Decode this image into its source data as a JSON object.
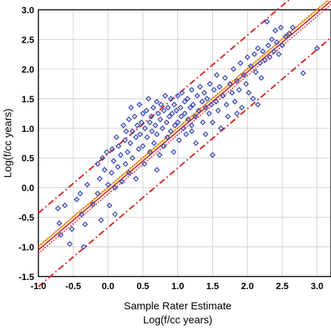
{
  "chart_data": {
    "type": "scatter",
    "title": "",
    "xlabel": "Sample Rater Estimate",
    "xlabel_sub": "Log(f/cc years)",
    "ylabel": "Log(f/cc years)",
    "xlim": [
      -1.0,
      3.2
    ],
    "ylim": [
      -1.5,
      3.0
    ],
    "xticks": [
      "-1.0",
      "-0.5",
      "0.0",
      "0.5",
      "1.0",
      "1.5",
      "2.0",
      "2.5",
      "3.0"
    ],
    "yticks": [
      "3.0",
      "2.5",
      "2.0",
      "1.5",
      "1.0",
      "0.5",
      "0.0",
      "-0.5",
      "-1.0",
      "-1.5"
    ],
    "grid": true,
    "colors": {
      "points": "#3a4bb5",
      "fit": "#d42a2a",
      "identity": "#f0a000",
      "interval": "#d42a2a"
    },
    "fit_line": {
      "intercept": -0.05,
      "slope": 1.0
    },
    "identity_line": {
      "intercept": 0.0,
      "slope": 1.0
    },
    "confidence_band": {
      "offset": 0.06
    },
    "prediction_band": {
      "offset": 0.62
    },
    "points": [
      [
        -0.72,
        -0.35
      ],
      [
        -0.7,
        -0.6
      ],
      [
        -0.68,
        -0.8
      ],
      [
        -0.62,
        -0.3
      ],
      [
        -0.55,
        -0.95
      ],
      [
        -0.52,
        -0.7
      ],
      [
        -0.45,
        -0.2
      ],
      [
        -0.4,
        -0.1
      ],
      [
        -0.38,
        -0.45
      ],
      [
        -0.35,
        -1.0
      ],
      [
        -0.33,
        -0.62
      ],
      [
        -0.3,
        0.05
      ],
      [
        -0.22,
        -0.28
      ],
      [
        -0.15,
        -0.1
      ],
      [
        -0.12,
        0.15
      ],
      [
        -0.1,
        -0.55
      ],
      [
        -0.08,
        0.5
      ],
      [
        -0.05,
        0.3
      ],
      [
        -0.02,
        0.6
      ],
      [
        0.0,
        0.05
      ],
      [
        0.02,
        -0.3
      ],
      [
        0.05,
        0.25
      ],
      [
        0.06,
        0.65
      ],
      [
        0.08,
        0.45
      ],
      [
        0.1,
        0.0
      ],
      [
        0.12,
        0.85
      ],
      [
        0.14,
        0.35
      ],
      [
        0.15,
        0.7
      ],
      [
        0.18,
        0.55
      ],
      [
        0.2,
        0.1
      ],
      [
        0.22,
        1.05
      ],
      [
        0.24,
        0.8
      ],
      [
        0.25,
        0.4
      ],
      [
        0.26,
        0.95
      ],
      [
        0.28,
        0.6
      ],
      [
        0.3,
        1.15
      ],
      [
        0.3,
        0.25
      ],
      [
        0.32,
        0.75
      ],
      [
        0.33,
        1.35
      ],
      [
        0.35,
        0.95
      ],
      [
        0.35,
        0.5
      ],
      [
        0.38,
        1.2
      ],
      [
        0.4,
        0.85
      ],
      [
        0.4,
        0.15
      ],
      [
        0.42,
        1.05
      ],
      [
        0.44,
        0.65
      ],
      [
        0.45,
        1.4
      ],
      [
        0.46,
        0.9
      ],
      [
        0.48,
        1.1
      ],
      [
        0.5,
        0.7
      ],
      [
        0.5,
        1.25
      ],
      [
        0.52,
        0.4
      ],
      [
        0.53,
        1.0
      ],
      [
        0.55,
        1.3
      ],
      [
        0.56,
        0.85
      ],
      [
        0.58,
        1.5
      ],
      [
        0.6,
        1.1
      ],
      [
        0.6,
        0.6
      ],
      [
        0.62,
        1.2
      ],
      [
        0.63,
        0.95
      ],
      [
        0.65,
        1.35
      ],
      [
        0.66,
        0.75
      ],
      [
        0.68,
        1.05
      ],
      [
        0.7,
        1.45
      ],
      [
        0.7,
        0.9
      ],
      [
        0.72,
        1.25
      ],
      [
        0.74,
        0.55
      ],
      [
        0.75,
        1.15
      ],
      [
        0.76,
        1.4
      ],
      [
        0.78,
        1.0
      ],
      [
        0.8,
        1.3
      ],
      [
        0.8,
        0.7
      ],
      [
        0.82,
        1.55
      ],
      [
        0.84,
        1.1
      ],
      [
        0.85,
        0.85
      ],
      [
        0.86,
        1.35
      ],
      [
        0.88,
        1.2
      ],
      [
        0.9,
        1.5
      ],
      [
        0.9,
        0.95
      ],
      [
        0.92,
        1.25
      ],
      [
        0.94,
        0.6
      ],
      [
        0.95,
        1.4
      ],
      [
        0.96,
        1.05
      ],
      [
        0.98,
        1.3
      ],
      [
        1.0,
        1.1
      ],
      [
        1.0,
        1.55
      ],
      [
        1.02,
        0.8
      ],
      [
        1.04,
        1.35
      ],
      [
        1.05,
        1.2
      ],
      [
        1.06,
        1.6
      ],
      [
        1.08,
        1.0
      ],
      [
        1.1,
        1.45
      ],
      [
        1.1,
        1.25
      ],
      [
        1.12,
        0.9
      ],
      [
        1.14,
        1.5
      ],
      [
        1.15,
        1.15
      ],
      [
        1.18,
        1.35
      ],
      [
        1.2,
        1.65
      ],
      [
        1.2,
        1.05
      ],
      [
        1.22,
        1.4
      ],
      [
        1.25,
        1.2
      ],
      [
        1.26,
        0.75
      ],
      [
        1.28,
        1.55
      ],
      [
        1.3,
        1.3
      ],
      [
        1.32,
        1.7
      ],
      [
        1.35,
        1.45
      ],
      [
        1.36,
        1.1
      ],
      [
        1.38,
        1.6
      ],
      [
        1.4,
        1.35
      ],
      [
        1.4,
        0.9
      ],
      [
        1.42,
        1.5
      ],
      [
        1.45,
        1.25
      ],
      [
        1.46,
        1.75
      ],
      [
        1.48,
        1.4
      ],
      [
        1.5,
        0.55
      ],
      [
        1.5,
        1.1
      ],
      [
        1.52,
        1.65
      ],
      [
        1.55,
        1.45
      ],
      [
        1.56,
        1.9
      ],
      [
        1.58,
        1.3
      ],
      [
        1.6,
        1.7
      ],
      [
        1.62,
        1.0
      ],
      [
        1.65,
        1.55
      ],
      [
        1.68,
        1.85
      ],
      [
        1.7,
        1.4
      ],
      [
        1.72,
        1.2
      ],
      [
        1.75,
        1.75
      ],
      [
        1.78,
        1.6
      ],
      [
        1.8,
        2.0
      ],
      [
        1.82,
        1.45
      ],
      [
        1.85,
        1.8
      ],
      [
        1.88,
        1.65
      ],
      [
        1.9,
        2.1
      ],
      [
        1.92,
        1.35
      ],
      [
        1.95,
        1.9
      ],
      [
        1.98,
        1.75
      ],
      [
        2.0,
        2.2
      ],
      [
        2.02,
        1.6
      ],
      [
        2.05,
        2.05
      ],
      [
        2.08,
        1.5
      ],
      [
        2.1,
        2.25
      ],
      [
        2.12,
        1.95
      ],
      [
        2.15,
        2.35
      ],
      [
        2.18,
        2.1
      ],
      [
        2.2,
        1.85
      ],
      [
        2.22,
        2.3
      ],
      [
        2.25,
        2.15
      ],
      [
        2.28,
        2.8
      ],
      [
        2.3,
        2.4
      ],
      [
        2.32,
        2.2
      ],
      [
        2.35,
        2.5
      ],
      [
        2.38,
        2.3
      ],
      [
        2.4,
        2.65
      ],
      [
        2.42,
        2.45
      ],
      [
        2.45,
        2.25
      ],
      [
        2.48,
        2.7
      ],
      [
        2.5,
        2.4
      ],
      [
        2.55,
        2.55
      ],
      [
        2.6,
        2.6
      ],
      [
        2.65,
        2.7
      ],
      [
        2.8,
        1.93
      ],
      [
        3.0,
        2.35
      ],
      [
        1.2,
        0.95
      ],
      [
        1.85,
        1.25
      ],
      [
        0.7,
        0.3
      ],
      [
        0.1,
        -0.45
      ],
      [
        -0.15,
        0.4
      ],
      [
        2.15,
        1.4
      ]
    ]
  }
}
